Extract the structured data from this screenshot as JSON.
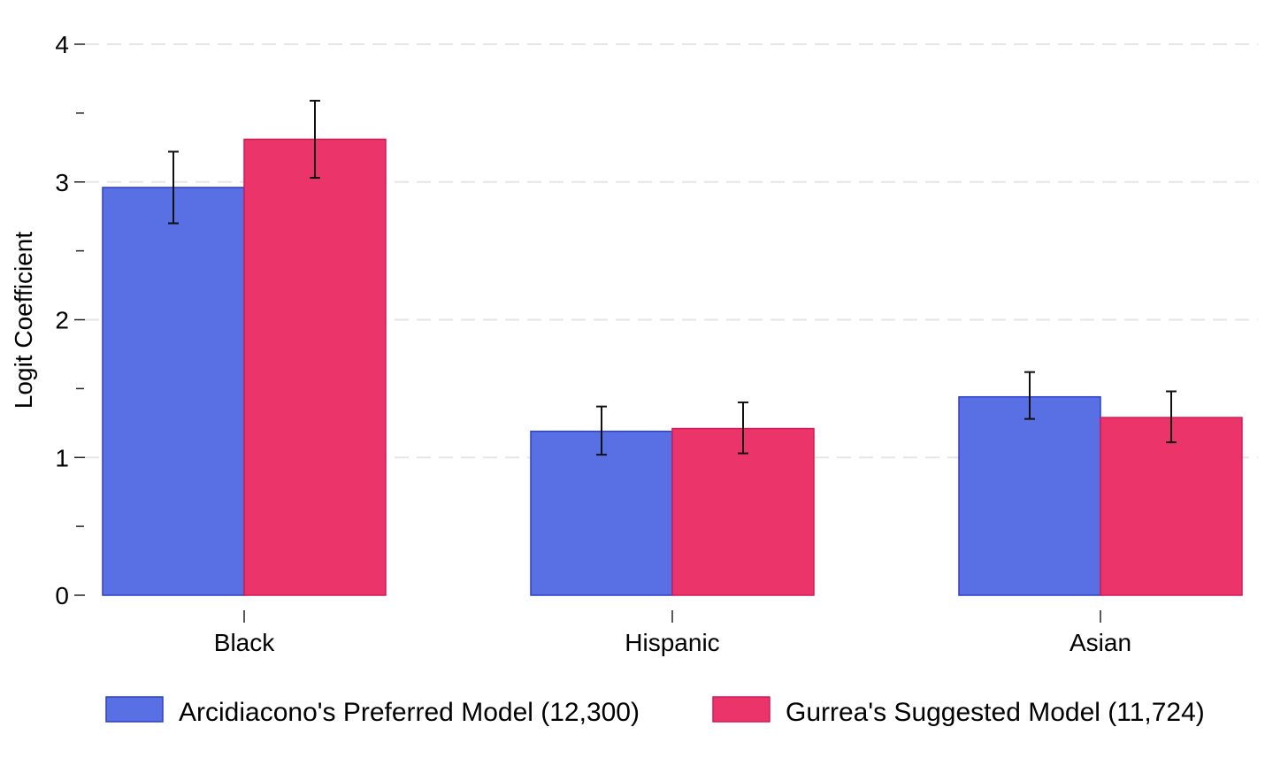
{
  "chart_data": {
    "type": "bar",
    "title": "",
    "xlabel": "",
    "ylabel": "Logit Coefficient",
    "ylim": [
      0,
      4
    ],
    "y_major_ticks": [
      0,
      1,
      2,
      3,
      4
    ],
    "y_minor_ticks": [
      0.5,
      1.5,
      2.5,
      3.5
    ],
    "grid": true,
    "legend_position": "bottom",
    "categories": [
      "Black",
      "Hispanic",
      "Asian"
    ],
    "series": [
      {
        "name": "Arcidiacono's Preferred Model (12,300)",
        "color": "#5870E4",
        "edge_color": "#2D3FCC",
        "values": [
          2.96,
          1.19,
          1.44
        ],
        "ci_low": [
          2.7,
          1.02,
          1.28
        ],
        "ci_high": [
          3.22,
          1.37,
          1.62
        ]
      },
      {
        "name": "Gurrea's Suggested Model (11,724)",
        "color": "#EB346A",
        "edge_color": "#D41A55",
        "values": [
          3.31,
          1.21,
          1.29
        ],
        "ci_low": [
          3.03,
          1.03,
          1.11
        ],
        "ci_high": [
          3.59,
          1.4,
          1.48
        ]
      }
    ]
  }
}
